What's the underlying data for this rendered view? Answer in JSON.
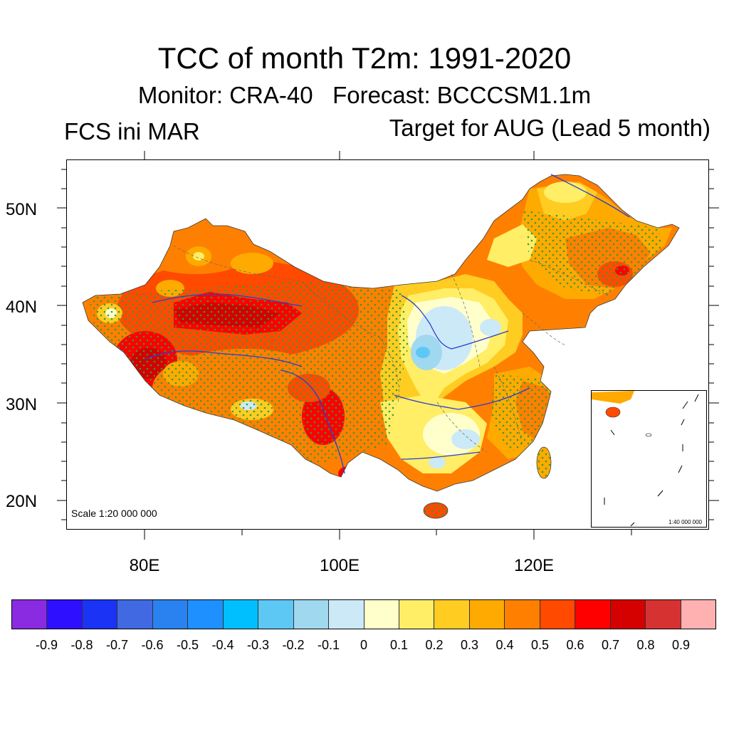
{
  "title": "TCC of month T2m: 1991-2020",
  "subtitle": "Monitor: CRA-40   Forecast: BCCCSM1.1m",
  "left_label": "FCS ini MAR",
  "right_label": "Target for AUG (Lead 5 month)",
  "map": {
    "scale_main": "Scale 1:20 000 000",
    "scale_inset": "1:40 000 000",
    "lat_ticks": [
      "50N",
      "40N",
      "30N",
      "20N"
    ],
    "lon_ticks": [
      "80E",
      "100E",
      "120E"
    ]
  },
  "colorbar": {
    "colors": [
      "#8a2be2",
      "#2e0fff",
      "#1a33f5",
      "#4169e1",
      "#2a82f0",
      "#1e90ff",
      "#00bfff",
      "#5ec8f5",
      "#a0d8f0",
      "#cce9f7",
      "#ffffcc",
      "#ffee66",
      "#ffcc22",
      "#ffaa00",
      "#ff8000",
      "#ff4a00",
      "#ff0000",
      "#d50000",
      "#d63232",
      "#ffb0b0"
    ],
    "labels": [
      "-0.9",
      "-0.8",
      "-0.7",
      "-0.6",
      "-0.5",
      "-0.4",
      "-0.3",
      "-0.2",
      "-0.1",
      "0",
      "0.1",
      "0.2",
      "0.3",
      "0.4",
      "0.5",
      "0.6",
      "0.7",
      "0.8",
      "0.9"
    ]
  }
}
